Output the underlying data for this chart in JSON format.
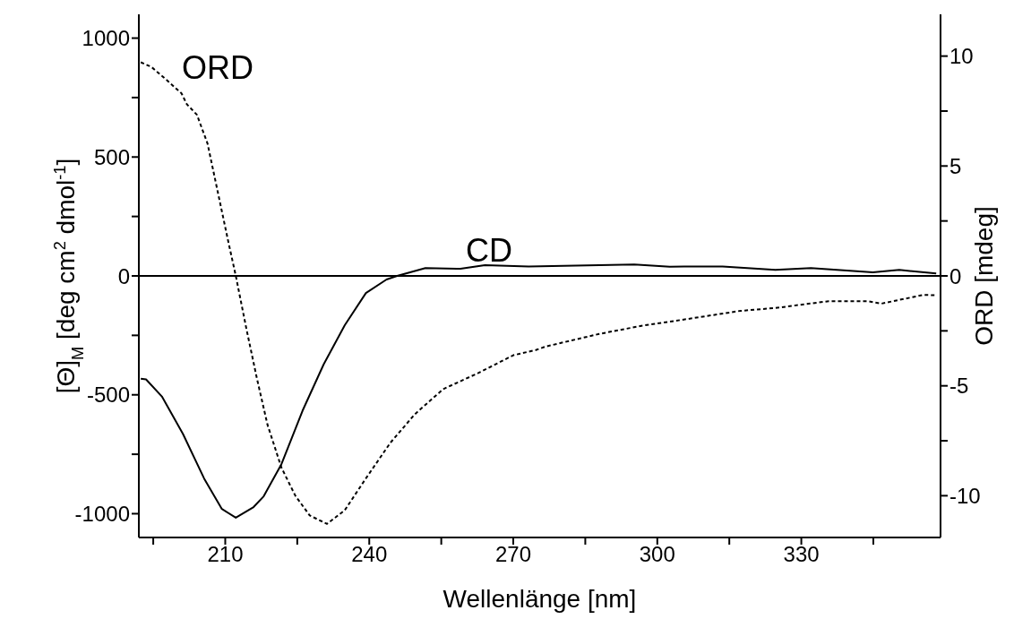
{
  "chart_data": {
    "type": "line",
    "xlabel": "Wellenlänge [nm]",
    "ylabel": "[Θ]$_{M}$ [deg cm$^{2}$ dmol$^{-1}$]",
    "y2label": "ORD [mdeg]",
    "xlim": [
      192,
      359
    ],
    "xticks": [
      {
        "value": 195,
        "label": null
      },
      210,
      {
        "value": 225,
        "label": null
      },
      240,
      {
        "value": 255,
        "label": null
      },
      270,
      {
        "value": 285,
        "label": null
      },
      300,
      {
        "value": 315,
        "label": null
      },
      330,
      {
        "value": 345,
        "label": null
      }
    ],
    "ylim": [
      -1100,
      1100
    ],
    "yticks": [
      -1000,
      {
        "value": -750,
        "label": null
      },
      -500,
      {
        "value": -250,
        "label": null
      },
      0,
      {
        "value": 250,
        "label": null
      },
      500,
      {
        "value": 750,
        "label": null
      },
      1000
    ],
    "y2lim": [
      -11.9,
      11.9
    ],
    "y2ticks": [
      -10,
      {
        "value": -7.5,
        "label": null
      },
      -5,
      {
        "value": -2.5,
        "label": null
      },
      0,
      {
        "value": 2.5,
        "label": null
      },
      5,
      {
        "value": 7.5,
        "label": null
      },
      10
    ],
    "marker": "none",
    "series": [
      {
        "color": "#000000",
        "line_style": "solid",
        "x": [
          192.4,
          193.5,
          196.8,
          201.2,
          205.6,
          209.3,
          212.2,
          215.9,
          218,
          221.7,
          226.1,
          230.5,
          234.9,
          239.3,
          243.6,
          245.8,
          251.7,
          259,
          264.1,
          273.2,
          287.9,
          295.2,
          302.6,
          313.6,
          324.6,
          332,
          344.9,
          350.4,
          358.1
        ],
        "values": [
          -432,
          -435,
          -507,
          -665,
          -852,
          -980,
          -1017,
          -972,
          -927,
          -792,
          -567,
          -372,
          -207,
          -72,
          -15,
          0,
          33,
          30,
          45,
          40,
          45,
          48,
          39,
          40,
          25,
          33,
          15,
          25,
          10
        ]
      },
      {
        "color": "#000000",
        "line_style": "dashed",
        "axis": "y2",
        "x": [
          192.4,
          194.6,
          197.6,
          200.9,
          202,
          204.1,
          206.3,
          208.5,
          210.7,
          212.2,
          214.4,
          216.6,
          218.8,
          221.7,
          224.6,
          227.6,
          231.2,
          234.9,
          239.3,
          244.4,
          249.5,
          255.4,
          262.7,
          270,
          274.7,
          276.8,
          287.9,
          296.7,
          306.3,
          317.3,
          324.6,
          335.7,
          343.8,
          346.7,
          355.5,
          358.1
        ],
        "values": [
          9.72,
          9.51,
          8.95,
          8.3,
          7.81,
          7.33,
          6.03,
          3.76,
          1.49,
          0,
          -2.4,
          -4.67,
          -6.77,
          -8.72,
          -10,
          -10.9,
          -11.28,
          -10.66,
          -9.21,
          -7.59,
          -6.29,
          -5.15,
          -4.42,
          -3.61,
          -3.37,
          -3.21,
          -2.64,
          -2.27,
          -1.96,
          -1.59,
          -1.46,
          -1.15,
          -1.15,
          -1.26,
          -0.86,
          -0.88
        ]
      }
    ],
    "ref_lines": [
      {
        "axis": "y",
        "value": 0,
        "color": "#000000"
      }
    ],
    "annotations": [
      "ORD",
      "CD"
    ]
  }
}
